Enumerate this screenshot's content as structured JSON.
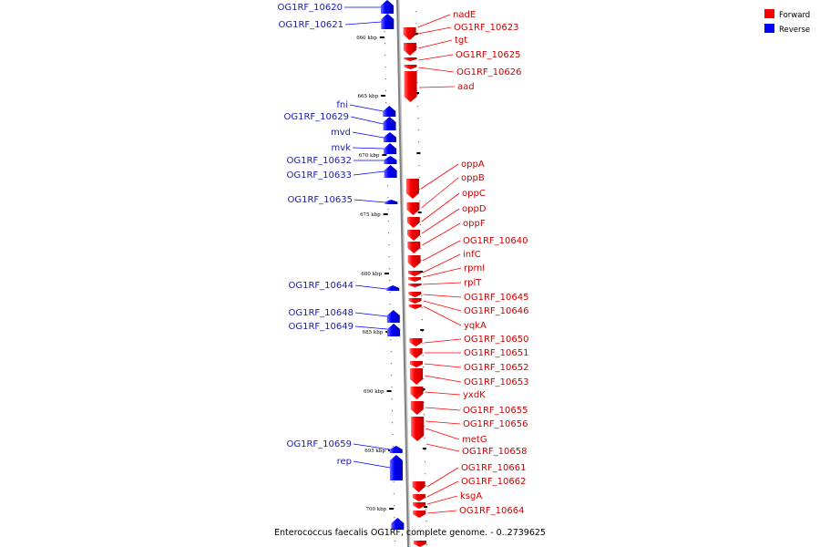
{
  "caption": "Enterococcus faecalis OG1RF, complete genome. - 0..2739625",
  "legend": [
    {
      "label": "Forward",
      "color": "#ff0000"
    },
    {
      "label": "Reverse",
      "color": "#0000ff"
    }
  ],
  "colors": {
    "forward": "#ff0000",
    "reverse": "#0000ff",
    "forward_label": "#cc0000",
    "reverse_label": "#1a1ab0"
  },
  "tick_labels": [
    "660 kbp",
    "665 kbp",
    "670 kbp",
    "675 kbp",
    "680 kbp",
    "685 kbp",
    "690 kbp",
    "695 kbp",
    "700 kbp"
  ],
  "forward_genes": [
    "nadE",
    "OG1RF_10623",
    "tgt",
    "OG1RF_10625",
    "OG1RF_10626",
    "aad",
    "oppA",
    "oppB",
    "oppC",
    "oppD",
    "oppF",
    "OG1RF_10640",
    "infC",
    "rpmI",
    "rplT",
    "OG1RF_10645",
    "OG1RF_10646",
    "yqkA",
    "OG1RF_10650",
    "OG1RF_10651",
    "OG1RF_10652",
    "OG1RF_10653",
    "yxdK",
    "OG1RF_10655",
    "OG1RF_10656",
    "metG",
    "OG1RF_10658",
    "OG1RF_10661",
    "OG1RF_10662",
    "ksgA",
    "OG1RF_10664"
  ],
  "reverse_genes": [
    "OG1RF_10620",
    "OG1RF_10621",
    "fni",
    "OG1RF_10629",
    "mvd",
    "mvk",
    "OG1RF_10632",
    "OG1RF_10633",
    "OG1RF_10635",
    "OG1RF_10644",
    "OG1RF_10648",
    "OG1RF_10649",
    "OG1RF_10659",
    "rep"
  ]
}
